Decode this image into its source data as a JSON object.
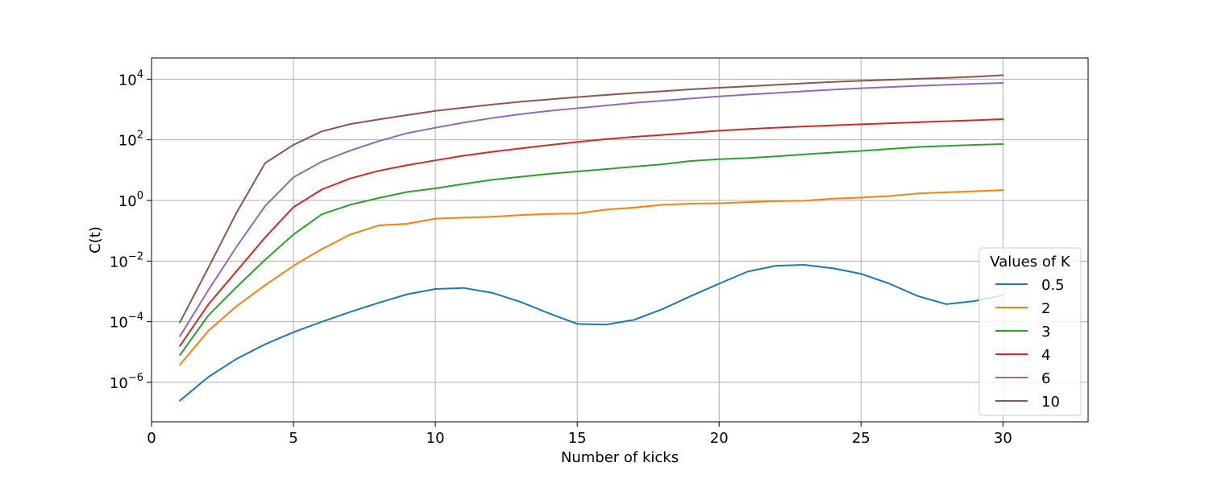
{
  "chart_data": {
    "type": "line",
    "xlabel": "Number of kicks",
    "ylabel": "C(t)",
    "x": [
      1,
      2,
      3,
      4,
      5,
      6,
      7,
      8,
      9,
      10,
      11,
      12,
      13,
      14,
      15,
      16,
      17,
      18,
      19,
      20,
      21,
      22,
      23,
      24,
      25,
      26,
      27,
      28,
      29,
      30
    ],
    "xlim": [
      0,
      33
    ],
    "x_ticks": [
      0,
      5,
      10,
      15,
      20,
      25,
      30
    ],
    "y_scale": "log",
    "ylim": [
      5e-08,
      50000
    ],
    "y_tick_exponents": [
      -6,
      -4,
      -2,
      0,
      2,
      4
    ],
    "grid": true,
    "legend": {
      "title": "Values of K",
      "placement": "lower-right"
    },
    "series": [
      {
        "name": "0.5",
        "color": "#1f77b4",
        "values": [
          2.5e-07,
          1.5e-06,
          6e-06,
          1.8e-05,
          4.5e-05,
          0.0001,
          0.00021,
          0.00042,
          0.0008,
          0.0012,
          0.0013,
          0.0009,
          0.00045,
          0.00019,
          8.5e-05,
          8e-05,
          0.000115,
          0.00026,
          0.0007,
          0.0018,
          0.0045,
          0.007,
          0.0075,
          0.0058,
          0.0038,
          0.0018,
          0.0007,
          0.00038,
          0.00048,
          0.00075
        ]
      },
      {
        "name": "2",
        "color": "#ff7f0e",
        "values": [
          3.8e-06,
          5e-05,
          0.00033,
          0.0016,
          0.007,
          0.025,
          0.075,
          0.15,
          0.17,
          0.25,
          0.27,
          0.29,
          0.33,
          0.36,
          0.37,
          0.5,
          0.58,
          0.72,
          0.78,
          0.81,
          0.88,
          0.95,
          0.98,
          1.15,
          1.25,
          1.4,
          1.7,
          1.85,
          2.0,
          2.2
        ]
      },
      {
        "name": "3",
        "color": "#2ca02c",
        "values": [
          8e-06,
          0.00016,
          0.0014,
          0.011,
          0.075,
          0.35,
          0.72,
          1.2,
          1.9,
          2.5,
          3.5,
          4.8,
          6,
          7.5,
          9,
          10.8,
          13,
          15.5,
          20,
          23,
          25,
          28.5,
          33,
          38,
          43,
          50,
          58,
          63,
          68,
          72
        ]
      },
      {
        "name": "4",
        "color": "#d62728",
        "values": [
          1.6e-05,
          0.00037,
          0.0047,
          0.06,
          0.6,
          2.3,
          5.3,
          9.5,
          14.5,
          21,
          30,
          40,
          52,
          67,
          85,
          105,
          125,
          145,
          170,
          200,
          225,
          250,
          275,
          300,
          325,
          350,
          380,
          410,
          440,
          480
        ]
      },
      {
        "name": "6",
        "color": "#9467bd",
        "values": [
          3.3e-05,
          0.0011,
          0.03,
          0.65,
          5.8,
          19,
          44,
          90,
          165,
          250,
          370,
          520,
          700,
          900,
          1100,
          1350,
          1650,
          1950,
          2300,
          2700,
          3100,
          3500,
          4000,
          4500,
          5000,
          5500,
          6000,
          6500,
          7000,
          7500
        ]
      },
      {
        "name": "10",
        "color": "#8c564b",
        "values": [
          9.5e-05,
          0.006,
          0.4,
          17,
          68,
          190,
          330,
          470,
          650,
          900,
          1150,
          1450,
          1800,
          2150,
          2550,
          3000,
          3500,
          4000,
          4600,
          5200,
          5800,
          6500,
          7300,
          8100,
          8800,
          9500,
          10300,
          11000,
          12000,
          13500
        ]
      }
    ]
  }
}
